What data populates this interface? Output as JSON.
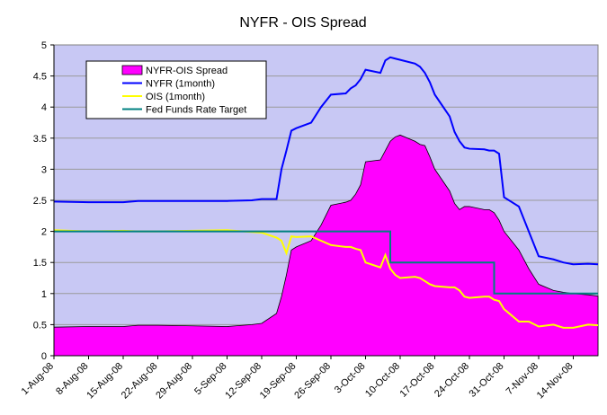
{
  "chart_data": {
    "type": "area",
    "title": "NYFR - OIS Spread",
    "xlabel": "",
    "ylabel": "",
    "ylim": [
      0,
      5
    ],
    "yticks": [
      0,
      0.5,
      1,
      1.5,
      2,
      2.5,
      3,
      3.5,
      4,
      4.5,
      5
    ],
    "grid": true,
    "legend_position": "top-left",
    "plot_background": "#c8c8f4",
    "x_tick_labels": [
      "1-Aug-08",
      "8-Aug-08",
      "15-Aug-08",
      "22-Aug-08",
      "29-Aug-08",
      "5-Sep-08",
      "12-Sep-08",
      "19-Sep-08",
      "26-Sep-08",
      "3-Oct-08",
      "10-Oct-08",
      "17-Oct-08",
      "24-Oct-08",
      "31-Oct-08",
      "7-Nov-08",
      "14-Nov-08"
    ],
    "x": [
      "1-Aug-08",
      "8-Aug-08",
      "15-Aug-08",
      "18-Aug-08",
      "22-Aug-08",
      "29-Aug-08",
      "5-Sep-08",
      "10-Sep-08",
      "12-Sep-08",
      "15-Sep-08",
      "16-Sep-08",
      "17-Sep-08",
      "18-Sep-08",
      "19-Sep-08",
      "22-Sep-08",
      "24-Sep-08",
      "26-Sep-08",
      "29-Sep-08",
      "30-Sep-08",
      "1-Oct-08",
      "2-Oct-08",
      "3-Oct-08",
      "6-Oct-08",
      "7-Oct-08",
      "8-Oct-08",
      "9-Oct-08",
      "10-Oct-08",
      "13-Oct-08",
      "14-Oct-08",
      "15-Oct-08",
      "16-Oct-08",
      "17-Oct-08",
      "20-Oct-08",
      "21-Oct-08",
      "22-Oct-08",
      "23-Oct-08",
      "24-Oct-08",
      "27-Oct-08",
      "28-Oct-08",
      "29-Oct-08",
      "30-Oct-08",
      "31-Oct-08",
      "3-Nov-08",
      "5-Nov-08",
      "7-Nov-08",
      "10-Nov-08",
      "12-Nov-08",
      "14-Nov-08",
      "17-Nov-08",
      "19-Nov-08"
    ],
    "series": [
      {
        "name": "NYFR-OIS Spread",
        "type": "area",
        "color": "#ff00ff",
        "values": [
          0.46,
          0.47,
          0.47,
          0.49,
          0.49,
          0.48,
          0.47,
          0.5,
          0.52,
          0.68,
          0.95,
          1.3,
          1.7,
          1.75,
          1.85,
          2.1,
          2.42,
          2.47,
          2.5,
          2.6,
          2.75,
          3.12,
          3.15,
          3.3,
          3.45,
          3.52,
          3.55,
          3.45,
          3.4,
          3.38,
          3.2,
          3.0,
          2.65,
          2.45,
          2.35,
          2.4,
          2.4,
          2.35,
          2.35,
          2.3,
          2.18,
          2.0,
          1.7,
          1.4,
          1.15,
          1.05,
          1.02,
          1.0,
          0.98,
          0.96
        ]
      },
      {
        "name": "NYFR (1month)",
        "type": "line",
        "color": "#0000ff",
        "values": [
          2.48,
          2.47,
          2.47,
          2.49,
          2.49,
          2.49,
          2.49,
          2.5,
          2.52,
          2.52,
          3.0,
          3.3,
          3.62,
          3.66,
          3.75,
          4.0,
          4.2,
          4.22,
          4.3,
          4.35,
          4.45,
          4.6,
          4.55,
          4.75,
          4.8,
          4.78,
          4.76,
          4.7,
          4.65,
          4.55,
          4.4,
          4.2,
          3.85,
          3.6,
          3.45,
          3.35,
          3.33,
          3.32,
          3.3,
          3.3,
          3.25,
          2.55,
          2.4,
          2.0,
          1.6,
          1.55,
          1.5,
          1.47,
          1.48,
          1.47
        ]
      },
      {
        "name": "OIS (1month)",
        "type": "line",
        "color": "#ffff00",
        "values": [
          2.02,
          2.0,
          2.01,
          2.0,
          2.0,
          2.01,
          2.02,
          1.99,
          1.98,
          1.9,
          1.85,
          1.65,
          1.92,
          1.91,
          1.92,
          1.85,
          1.78,
          1.75,
          1.75,
          1.72,
          1.7,
          1.5,
          1.42,
          1.62,
          1.4,
          1.3,
          1.25,
          1.27,
          1.25,
          1.2,
          1.15,
          1.12,
          1.1,
          1.1,
          1.05,
          0.95,
          0.93,
          0.95,
          0.95,
          0.9,
          0.88,
          0.75,
          0.55,
          0.55,
          0.47,
          0.5,
          0.45,
          0.45,
          0.5,
          0.49
        ]
      },
      {
        "name": "Fed Funds Rate Target",
        "type": "step",
        "color": "#008080",
        "values": [
          2.0,
          2.0,
          2.0,
          2.0,
          2.0,
          2.0,
          2.0,
          2.0,
          2.0,
          2.0,
          2.0,
          2.0,
          2.0,
          2.0,
          2.0,
          2.0,
          2.0,
          2.0,
          2.0,
          2.0,
          2.0,
          2.0,
          2.0,
          2.0,
          1.5,
          1.5,
          1.5,
          1.5,
          1.5,
          1.5,
          1.5,
          1.5,
          1.5,
          1.5,
          1.5,
          1.5,
          1.5,
          1.5,
          1.5,
          1.0,
          1.0,
          1.0,
          1.0,
          1.0,
          1.0,
          1.0,
          1.0,
          1.0,
          1.0,
          1.0
        ]
      }
    ]
  }
}
